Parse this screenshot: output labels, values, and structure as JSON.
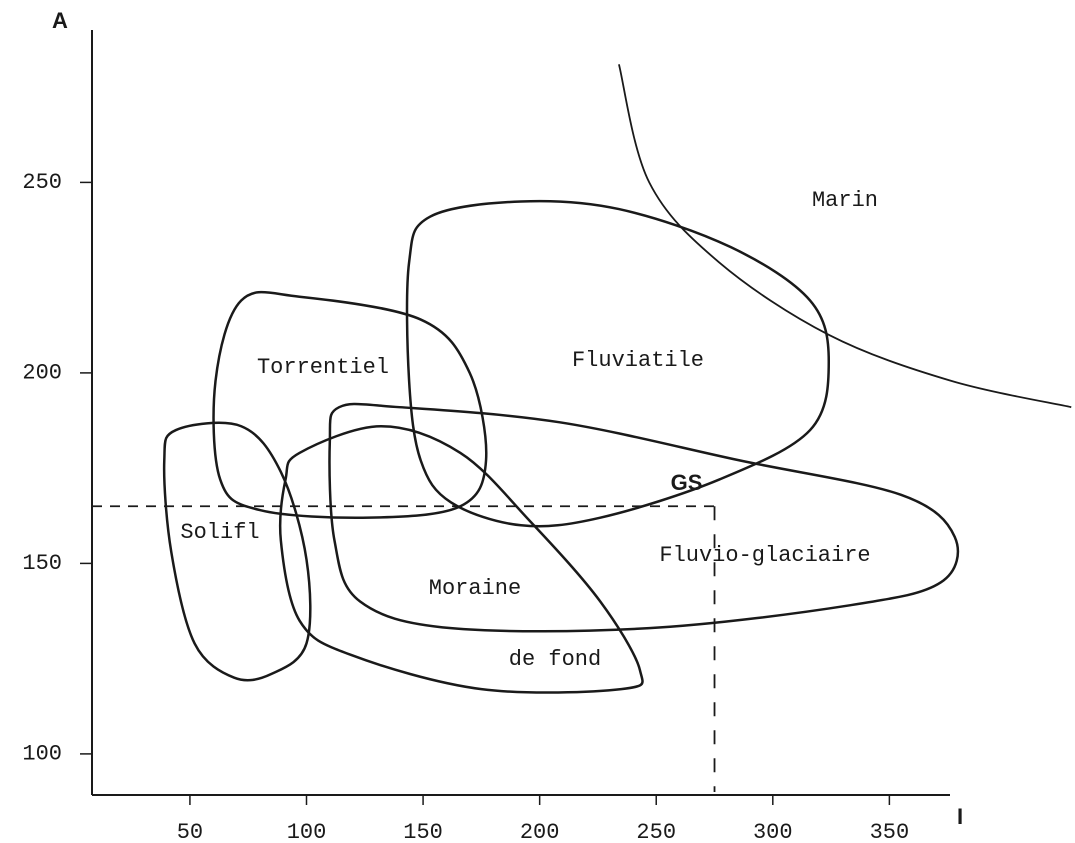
{
  "chart_data": {
    "type": "region",
    "x_label": "I",
    "y_label": "A",
    "xlim": [
      8,
      376
    ],
    "ylim": [
      90,
      290
    ],
    "xticks": [
      50,
      100,
      150,
      200,
      250,
      300,
      350
    ],
    "yticks": [
      100,
      150,
      200,
      250
    ],
    "color": "#1a1a1a",
    "regions": [
      {
        "labels": [
          "Fluviatile"
        ],
        "x": [
          153,
          192,
          234,
          282,
          316,
          324,
          316,
          277,
          226,
          192,
          162,
          149,
          144,
          144
        ],
        "y": [
          241,
          245,
          243,
          233,
          219,
          203,
          185,
          172,
          162,
          160,
          166,
          177,
          198,
          229
        ]
      },
      {
        "labels": [
          "Torrentiel"
        ],
        "x": [
          72,
          97,
          149,
          170,
          177,
          166,
          127,
          80,
          63,
          61
        ],
        "y": [
          219,
          220,
          214,
          200,
          177,
          165,
          162,
          164,
          172,
          198
        ]
      },
      {
        "labels": [
          "Solifl"
        ],
        "x": [
          44,
          72,
          89,
          100,
          100,
          85,
          69,
          52,
          42,
          39
        ],
        "y": [
          185,
          186,
          174,
          151,
          129,
          121,
          120,
          129,
          153,
          177
        ]
      },
      {
        "labels": [
          "Moraine",
          "de fond"
        ],
        "x": [
          97,
          132,
          166,
          196,
          226,
          243,
          235,
          175,
          119,
          97,
          89,
          91
        ],
        "y": [
          179,
          186,
          179,
          161,
          140,
          122,
          117,
          117,
          126,
          135,
          156,
          172
        ]
      },
      {
        "labels": [
          "Fluvio-glaciaire"
        ],
        "x": [
          114,
          140,
          209,
          286,
          355,
          378,
          372,
          333,
          247,
          162,
          123,
          112,
          110
        ],
        "y": [
          191,
          191,
          187,
          177,
          168,
          157,
          145,
          139,
          133,
          133,
          140,
          156,
          182
        ]
      }
    ],
    "boundary": {
      "label": "Marin",
      "x": [
        234,
        247,
        277,
        324,
        376,
        428
      ],
      "y": [
        281,
        250,
        229,
        210,
        198,
        191
      ]
    },
    "point": {
      "label": "GS",
      "x": 275,
      "y": 165
    }
  }
}
